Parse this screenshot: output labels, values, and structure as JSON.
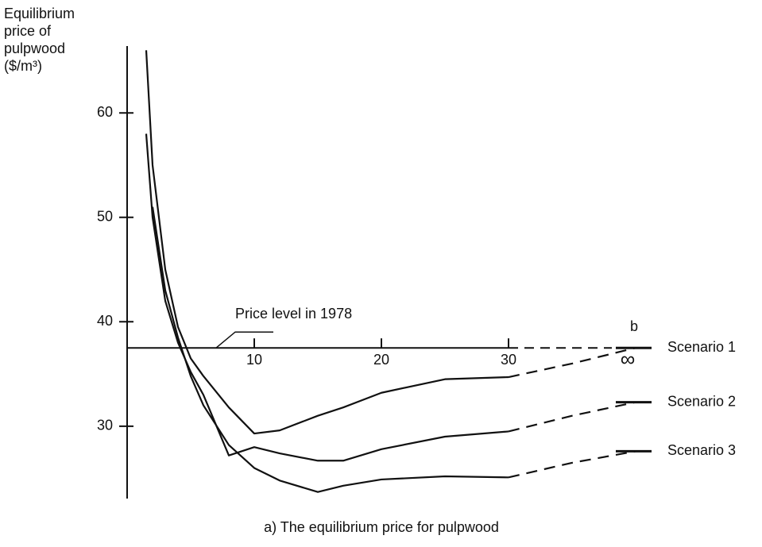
{
  "chart_data": {
    "type": "line",
    "y_axis_label": [
      "Equilibrium",
      "price of",
      "pulpwood",
      "($/m³)"
    ],
    "caption": "a) The equilibrium price for pulpwood",
    "x": [
      1.5,
      2,
      3,
      4,
      5,
      6,
      8,
      10,
      12,
      15,
      17,
      20,
      25,
      30,
      35,
      40
    ],
    "series": [
      {
        "name": "Scenario 1",
        "color": "#111111",
        "values": [
          66,
          55,
          45,
          39.5,
          36.5,
          34.8,
          31.8,
          29.3,
          29.6,
          31,
          31.8,
          33.2,
          34.5,
          34.7,
          36,
          37.5
        ]
      },
      {
        "name": "Scenario 2",
        "color": "#111111",
        "values": [
          58,
          50,
          42,
          38,
          35.2,
          33,
          27.2,
          28,
          27.4,
          26.7,
          26.7,
          27.8,
          29,
          29.5,
          31,
          32.3
        ]
      },
      {
        "name": "Scenario 3",
        "color": "#111111",
        "values": [
          null,
          51,
          43,
          38.5,
          34.8,
          32,
          28.2,
          26,
          24.8,
          23.7,
          24.3,
          24.9,
          25.2,
          25.1,
          26.5,
          27.6
        ]
      }
    ],
    "dash_after_x": 30,
    "reference_line": {
      "y": 37.5,
      "label": "Price level in 1978"
    },
    "annotation": "b",
    "xlim": [
      0,
      40
    ],
    "ylim": [
      23.3,
      66.4
    ],
    "xticks": [
      10,
      20,
      30,
      {
        "value": 40,
        "label": "∞"
      }
    ],
    "yticks": [
      30,
      40,
      50,
      60
    ]
  }
}
